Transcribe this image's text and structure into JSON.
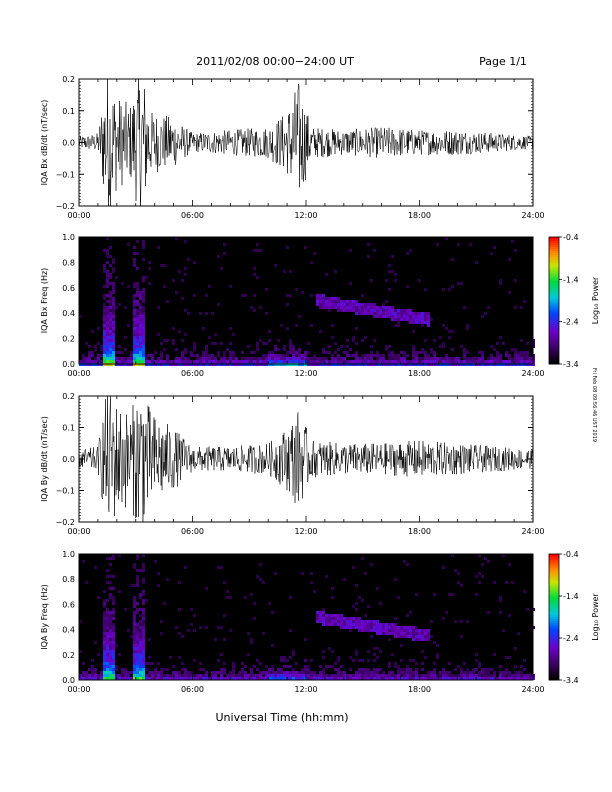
{
  "header": {
    "title": "2011/02/08  00:00−24:00 UT",
    "page": "Page 1/1"
  },
  "xaxis": {
    "label": "Universal Time (hh:mm)",
    "ticks": [
      "00:00",
      "06:00",
      "12:00",
      "18:00",
      "24:00"
    ],
    "range_hours": [
      0,
      24
    ]
  },
  "timestamp": "Fri Feb 08 09:56:46 UST 2019",
  "colorbar": {
    "label": "Log₁₀ Power",
    "ticks": [
      "-0.4",
      "-1.4",
      "-2.4",
      "-3.4"
    ],
    "range": [
      -3.4,
      -0.4
    ],
    "scale": "rainbow (black-purple-blue-cyan-green-yellow-orange-red)"
  },
  "chart_data": [
    {
      "type": "line",
      "ylabel": "IQA Bx dB/dt (nT/sec)",
      "ylim": [
        -0.2,
        0.2
      ],
      "yticks": [
        "0.2",
        "0.1",
        "0.0",
        "−0.1",
        "−0.2"
      ],
      "series_color": "#000000",
      "x_hours": [
        0,
        1,
        1.5,
        2,
        2.7,
        3.3,
        3.8,
        5,
        6,
        8,
        10,
        11,
        11.6,
        12.3,
        14,
        16,
        18,
        20,
        22,
        24
      ],
      "amplitude": [
        0.02,
        0.03,
        0.25,
        0.15,
        0.12,
        0.25,
        0.1,
        0.08,
        0.03,
        0.04,
        0.05,
        0.1,
        0.2,
        0.05,
        0.04,
        0.05,
        0.04,
        0.04,
        0.03,
        0.02
      ]
    },
    {
      "type": "heatmap",
      "ylabel": "IQA Bx Freq (Hz)",
      "ylim": [
        0,
        1.0
      ],
      "yticks": [
        "1.0",
        "0.8",
        "0.6",
        "0.4",
        "0.2",
        "0.0"
      ]
    },
    {
      "type": "line",
      "ylabel": "IQA By dB/dt (nT/sec)",
      "ylim": [
        -0.2,
        0.2
      ],
      "yticks": [
        "0.2",
        "0.1",
        "0.0",
        "−0.1",
        "−0.2"
      ],
      "series_color": "#000000",
      "x_hours": [
        0,
        1,
        1.5,
        2,
        2.7,
        3.3,
        3.8,
        5,
        6,
        8,
        10,
        11,
        11.6,
        12.3,
        14,
        16,
        18,
        20,
        22,
        24
      ],
      "amplitude": [
        0.03,
        0.04,
        0.25,
        0.18,
        0.15,
        0.25,
        0.15,
        0.1,
        0.04,
        0.04,
        0.05,
        0.1,
        0.16,
        0.06,
        0.05,
        0.05,
        0.06,
        0.05,
        0.04,
        0.03
      ]
    },
    {
      "type": "heatmap",
      "ylabel": "IQA By Freq (Hz)",
      "ylim": [
        0,
        1.0
      ],
      "yticks": [
        "1.0",
        "0.8",
        "0.6",
        "0.4",
        "0.2",
        "0.0"
      ]
    }
  ]
}
